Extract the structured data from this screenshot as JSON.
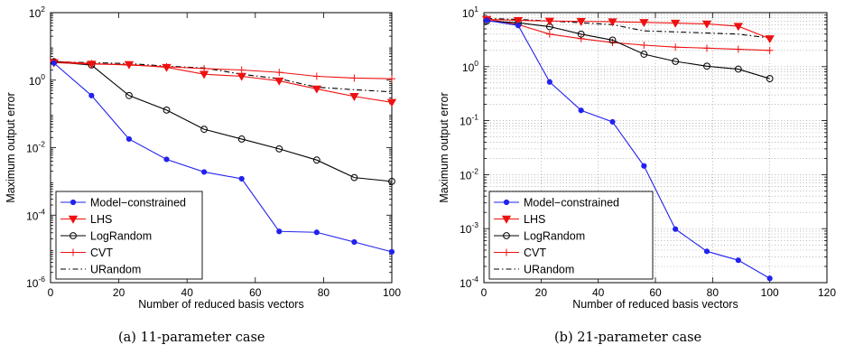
{
  "chart_data": [
    {
      "type": "line",
      "xlabel": "Number of reduced basis vectors",
      "ylabel": "Maximum output error",
      "yscale": "log",
      "xlim": [
        0,
        100
      ],
      "ylim": [
        1e-06,
        100
      ],
      "xticks": [
        0,
        20,
        40,
        60,
        80,
        100
      ],
      "yticks": [
        {
          "base": "10",
          "exp": "-6",
          "v": 1e-06
        },
        {
          "base": "10",
          "exp": "-4",
          "v": 0.0001
        },
        {
          "base": "10",
          "exp": "-2",
          "v": 0.01
        },
        {
          "base": "10",
          "exp": "0",
          "v": 1
        },
        {
          "base": "10",
          "exp": "2",
          "v": 100
        }
      ],
      "grid": false,
      "legend_position": "lower-left",
      "caption": "(a) 11-parameter case",
      "series": [
        {
          "name": "Model−constrained",
          "color": "#2222ee",
          "marker": "dot",
          "x": [
            1,
            12,
            23,
            34,
            45,
            56,
            67,
            78,
            89,
            100
          ],
          "y": [
            3.2,
            0.35,
            0.018,
            0.0045,
            0.0019,
            0.0012,
            3.3e-05,
            3.1e-05,
            1.6e-05,
            8.2e-06
          ]
        },
        {
          "name": "LHS",
          "color": "#ee1111",
          "marker": "tri",
          "x": [
            1,
            12,
            23,
            34,
            45,
            56,
            67,
            78,
            89,
            100
          ],
          "y": [
            3.3,
            3.0,
            2.9,
            2.4,
            1.5,
            1.3,
            0.95,
            0.55,
            0.33,
            0.22
          ]
        },
        {
          "name": "LogRandom",
          "color": "#000000",
          "marker": "circle",
          "x": [
            1,
            12,
            23,
            34,
            45,
            56,
            67,
            78,
            89,
            100
          ],
          "y": [
            3.5,
            2.8,
            0.35,
            0.13,
            0.035,
            0.018,
            0.0092,
            0.0043,
            0.0013,
            0.001
          ]
        },
        {
          "name": "CVT",
          "color": "#ee1111",
          "marker": "plus",
          "x": [
            1,
            12,
            23,
            34,
            45,
            56,
            67,
            78,
            89,
            100
          ],
          "y": [
            3.6,
            3.1,
            2.8,
            2.5,
            2.2,
            2.0,
            1.7,
            1.3,
            1.15,
            1.1
          ]
        },
        {
          "name": "URandom",
          "color": "#000000",
          "marker": "none",
          "dash": "dashdot",
          "x": [
            1,
            12,
            23,
            34,
            45,
            56,
            67,
            78,
            89,
            100
          ],
          "y": [
            3.5,
            3.3,
            3.1,
            2.6,
            2.3,
            1.5,
            1.1,
            0.62,
            0.52,
            0.45
          ]
        }
      ]
    },
    {
      "type": "line",
      "xlabel": "Number of reduced basis vectors",
      "ylabel": "Maximum output error",
      "yscale": "log",
      "xlim": [
        0,
        120
      ],
      "ylim": [
        0.0001,
        10
      ],
      "xticks": [
        0,
        20,
        40,
        60,
        80,
        100,
        120
      ],
      "yticks": [
        {
          "base": "10",
          "exp": "-4",
          "v": 0.0001
        },
        {
          "base": "10",
          "exp": "-3",
          "v": 0.001
        },
        {
          "base": "10",
          "exp": "-2",
          "v": 0.01
        },
        {
          "base": "10",
          "exp": "-1",
          "v": 0.1
        },
        {
          "base": "10",
          "exp": "0",
          "v": 1
        },
        {
          "base": "10",
          "exp": "1",
          "v": 10
        }
      ],
      "grid": true,
      "legend_position": "lower-left",
      "caption": "(b) 21-parameter case",
      "series": [
        {
          "name": "Model−constrained",
          "color": "#2222ee",
          "marker": "dot",
          "x": [
            1,
            12,
            23,
            34,
            45,
            56,
            67,
            78,
            89,
            100
          ],
          "y": [
            7.2,
            5.8,
            0.52,
            0.155,
            0.095,
            0.0145,
            0.00098,
            0.00038,
            0.00026,
            0.00012
          ]
        },
        {
          "name": "LHS",
          "color": "#ee1111",
          "marker": "tri",
          "x": [
            1,
            12,
            23,
            34,
            45,
            56,
            67,
            78,
            89,
            100
          ],
          "y": [
            7.5,
            7.2,
            7.0,
            6.9,
            6.8,
            6.6,
            6.4,
            6.2,
            5.6,
            3.3
          ]
        },
        {
          "name": "LogRandom",
          "color": "#000000",
          "marker": "circle",
          "x": [
            1,
            12,
            23,
            34,
            45,
            56,
            67,
            78,
            89,
            100
          ],
          "y": [
            7.0,
            6.5,
            5.5,
            4.0,
            3.1,
            1.7,
            1.25,
            1.02,
            0.9,
            0.6
          ]
        },
        {
          "name": "CVT",
          "color": "#ee1111",
          "marker": "plus",
          "x": [
            1,
            12,
            23,
            34,
            45,
            56,
            67,
            78,
            89,
            100
          ],
          "y": [
            7.6,
            6.0,
            4.0,
            3.3,
            2.8,
            2.5,
            2.3,
            2.2,
            2.1,
            2.0
          ]
        },
        {
          "name": "URandom",
          "color": "#000000",
          "marker": "none",
          "dash": "dashdot",
          "x": [
            1,
            12,
            23,
            34,
            45,
            56,
            67,
            78,
            89,
            100
          ],
          "y": [
            7.8,
            7.5,
            7.0,
            6.5,
            6.0,
            4.6,
            4.4,
            4.2,
            4.0,
            3.4
          ]
        }
      ]
    }
  ]
}
